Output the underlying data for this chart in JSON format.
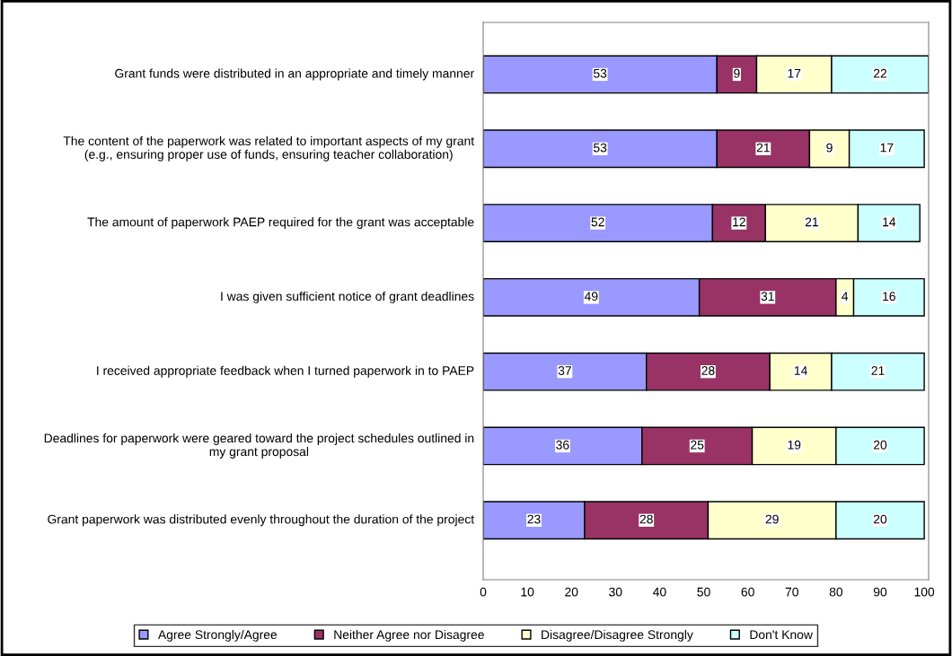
{
  "chart_data": {
    "type": "bar",
    "orientation": "horizontal",
    "stacked": true,
    "data_labels": true,
    "categories": [
      "Grant funds were distributed in an appropriate and timely manner",
      "The content of the paperwork was related to important aspects of my grant (e.g., ensuring proper use of funds, ensuring teacher collaboration)",
      "The amount of paperwork PAEP required for the grant was acceptable",
      "I was given sufficient notice of grant deadlines",
      "I received appropriate feedback when I turned paperwork in to PAEP",
      "Deadlines for paperwork were geared toward the project schedules outlined in my grant proposal",
      "Grant paperwork was distributed evenly throughout the duration of the project"
    ],
    "series": [
      {
        "name": "Agree Strongly/Agree",
        "color": "#9999ff",
        "values": [
          53,
          53,
          52,
          49,
          37,
          36,
          23
        ]
      },
      {
        "name": "Neither Agree nor Disagree",
        "color": "#993366",
        "values": [
          9,
          21,
          12,
          31,
          28,
          25,
          28
        ]
      },
      {
        "name": "Disagree/Disagree Strongly",
        "color": "#ffffcc",
        "values": [
          17,
          9,
          21,
          4,
          14,
          19,
          29
        ]
      },
      {
        "name": "Don't Know",
        "color": "#ccffff",
        "values": [
          22,
          17,
          14,
          16,
          21,
          20,
          20
        ]
      }
    ],
    "xlim": [
      0,
      101
    ],
    "xticks": [
      0,
      10,
      20,
      30,
      40,
      50,
      60,
      70,
      80,
      90,
      100
    ],
    "grid": false,
    "legend": "bottom"
  }
}
